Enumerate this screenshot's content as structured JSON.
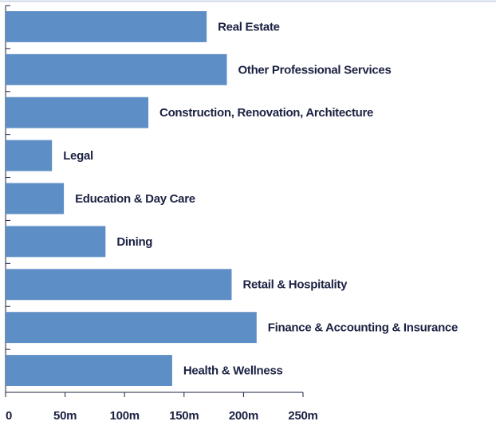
{
  "chart_data": {
    "type": "bar",
    "orientation": "horizontal",
    "categories": [
      "Real Estate",
      "Other Professional Services",
      "Construction, Renovation, Architecture",
      "Legal",
      "Education & Day Care",
      "Dining",
      "Retail & Hospitality",
      "Finance & Accounting & Insurance",
      "Health & Wellness"
    ],
    "values": [
      169,
      186,
      120,
      39,
      49,
      84,
      190,
      211,
      140
    ],
    "color": "#5e8ec6",
    "xlim": [
      0,
      250
    ],
    "xticks": [
      0,
      {
        "value": 50,
        "label": "50m"
      },
      {
        "value": 100,
        "label": "100m"
      },
      {
        "value": 150,
        "label": "150m"
      },
      {
        "value": 200,
        "label": "200m"
      },
      {
        "value": 250,
        "label": "250m"
      }
    ]
  }
}
